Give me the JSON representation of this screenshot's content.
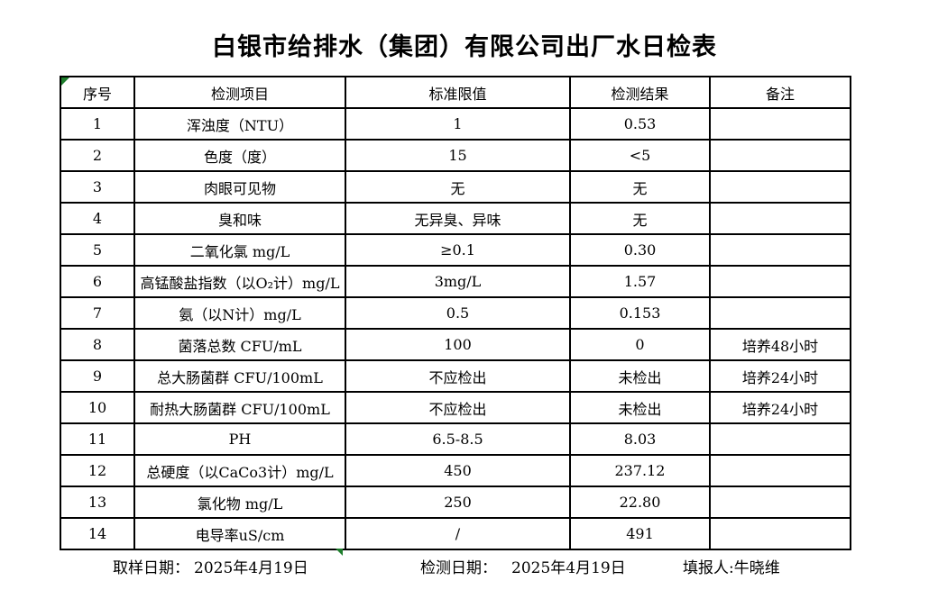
{
  "title": "白银市给排水（集团）有限公司出厂水日检表",
  "colors": {
    "background": "#ffffff",
    "text": "#000000",
    "table_border": "#000000",
    "marker_green": "#1e7e2d"
  },
  "icons": {
    "top_left_marker": "excel-green-corner-triangle",
    "limit_column_bottom_marker": "excel-green-corner-triangle"
  },
  "table": {
    "headers": [
      "序号",
      "检测项目",
      "标准限值",
      "检测结果",
      "备注"
    ],
    "rows": [
      {
        "no": "1",
        "item": "浑浊度（NTU）",
        "limit": "1",
        "result": "0.53",
        "remark": ""
      },
      {
        "no": "2",
        "item": "色度（度）",
        "limit": "15",
        "result": "<5",
        "remark": ""
      },
      {
        "no": "3",
        "item": "肉眼可见物",
        "limit": "无",
        "result": "无",
        "remark": ""
      },
      {
        "no": "4",
        "item": "臭和味",
        "limit": "无异臭、异味",
        "result": "无",
        "remark": ""
      },
      {
        "no": "5",
        "item": "二氧化氯 mg/L",
        "limit": "≥0.1",
        "result": "0.30",
        "remark": ""
      },
      {
        "no": "6",
        "item": "高锰酸盐指数（以O₂计）mg/L",
        "limit": "3mg/L",
        "result": "1.57",
        "remark": ""
      },
      {
        "no": "7",
        "item": "氨（以N计）mg/L",
        "limit": "0.5",
        "result": "0.153",
        "remark": ""
      },
      {
        "no": "8",
        "item": "菌落总数 CFU/mL",
        "limit": "100",
        "result": "0",
        "remark": "培养48小时"
      },
      {
        "no": "9",
        "item": "总大肠菌群 CFU/100mL",
        "limit": "不应检出",
        "result": "未检出",
        "remark": "培养24小时"
      },
      {
        "no": "10",
        "item": "耐热大肠菌群 CFU/100mL",
        "limit": "不应检出",
        "result": "未检出",
        "remark": "培养24小时"
      },
      {
        "no": "11",
        "item": "PH",
        "limit": "6.5-8.5",
        "result": "8.03",
        "remark": ""
      },
      {
        "no": "12",
        "item": "总硬度（以CaCo3计）mg/L",
        "limit": "450",
        "result": "237.12",
        "remark": ""
      },
      {
        "no": "13",
        "item": "氯化物 mg/L",
        "limit": "250",
        "result": "22.80",
        "remark": ""
      },
      {
        "no": "14",
        "item": "电导率uS/cm",
        "limit": "/",
        "result": "491",
        "remark": ""
      }
    ]
  },
  "footer": {
    "sampling_label": "取样日期：",
    "sampling_date": "2025年4月19日",
    "testing_label": "检测日期：",
    "testing_date": "2025年4月19日",
    "reporter_label": "填报人:",
    "reporter_name": "牛晓维"
  }
}
